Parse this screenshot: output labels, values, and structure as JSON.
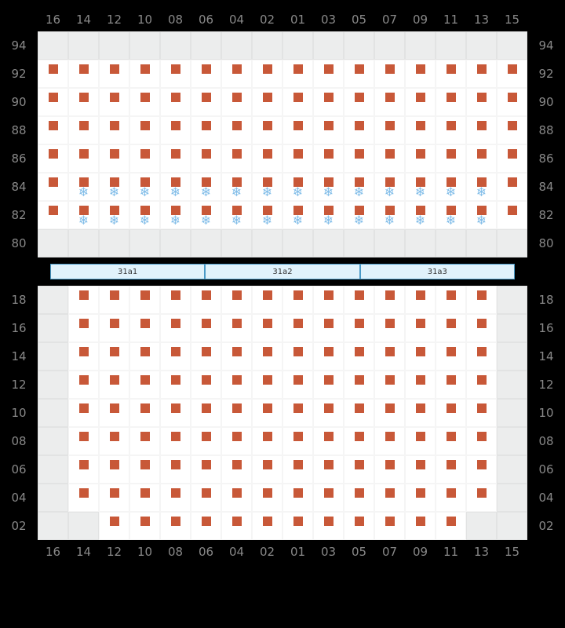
{
  "cols": [
    "16",
    "14",
    "12",
    "10",
    "08",
    "06",
    "04",
    "02",
    "01",
    "03",
    "05",
    "07",
    "09",
    "11",
    "13",
    "15"
  ],
  "upper": {
    "rows": [
      "94",
      "92",
      "90",
      "88",
      "86",
      "84",
      "82",
      "80"
    ],
    "cells": {
      "94": {
        "grey_cols": [
          "16",
          "14",
          "12",
          "10",
          "08",
          "06",
          "04",
          "02",
          "01",
          "03",
          "05",
          "07",
          "09",
          "11",
          "13",
          "15"
        ],
        "seat_cols": [],
        "snow_cols": []
      },
      "92": {
        "grey_cols": [],
        "seat_cols": [
          "16",
          "14",
          "12",
          "10",
          "08",
          "06",
          "04",
          "02",
          "01",
          "03",
          "05",
          "07",
          "09",
          "11",
          "13",
          "15"
        ],
        "snow_cols": []
      },
      "90": {
        "grey_cols": [],
        "seat_cols": [
          "16",
          "14",
          "12",
          "10",
          "08",
          "06",
          "04",
          "02",
          "01",
          "03",
          "05",
          "07",
          "09",
          "11",
          "13",
          "15"
        ],
        "snow_cols": []
      },
      "88": {
        "grey_cols": [],
        "seat_cols": [
          "16",
          "14",
          "12",
          "10",
          "08",
          "06",
          "04",
          "02",
          "01",
          "03",
          "05",
          "07",
          "09",
          "11",
          "13",
          "15"
        ],
        "snow_cols": []
      },
      "86": {
        "grey_cols": [],
        "seat_cols": [
          "16",
          "14",
          "12",
          "10",
          "08",
          "06",
          "04",
          "02",
          "01",
          "03",
          "05",
          "07",
          "09",
          "11",
          "13",
          "15"
        ],
        "snow_cols": []
      },
      "84": {
        "grey_cols": [],
        "seat_cols": [
          "16",
          "14",
          "12",
          "10",
          "08",
          "06",
          "04",
          "02",
          "01",
          "03",
          "05",
          "07",
          "09",
          "11",
          "13",
          "15"
        ],
        "snow_cols": [
          "14",
          "12",
          "10",
          "08",
          "06",
          "04",
          "02",
          "01",
          "03",
          "05",
          "07",
          "09",
          "11",
          "13"
        ]
      },
      "82": {
        "grey_cols": [],
        "seat_cols": [
          "16",
          "14",
          "12",
          "10",
          "08",
          "06",
          "04",
          "02",
          "01",
          "03",
          "05",
          "07",
          "09",
          "11",
          "13",
          "15"
        ],
        "snow_cols": [
          "14",
          "12",
          "10",
          "08",
          "06",
          "04",
          "02",
          "01",
          "03",
          "05",
          "07",
          "09",
          "11",
          "13"
        ]
      },
      "80": {
        "grey_cols": [
          "16",
          "14",
          "12",
          "10",
          "08",
          "06",
          "04",
          "02",
          "01",
          "03",
          "05",
          "07",
          "09",
          "11",
          "13",
          "15"
        ],
        "seat_cols": [],
        "snow_cols": []
      }
    }
  },
  "divider": [
    "31a1",
    "31a2",
    "31a3"
  ],
  "lower": {
    "rows": [
      "18",
      "16",
      "14",
      "12",
      "10",
      "08",
      "06",
      "04",
      "02"
    ],
    "cells": {
      "18": {
        "grey_cols": [
          "16",
          "15"
        ],
        "seat_cols": [
          "14",
          "12",
          "10",
          "08",
          "06",
          "04",
          "02",
          "01",
          "03",
          "05",
          "07",
          "09",
          "11",
          "13"
        ],
        "snow_cols": []
      },
      "16": {
        "grey_cols": [
          "16",
          "15"
        ],
        "seat_cols": [
          "14",
          "12",
          "10",
          "08",
          "06",
          "04",
          "02",
          "01",
          "03",
          "05",
          "07",
          "09",
          "11",
          "13"
        ],
        "snow_cols": []
      },
      "14": {
        "grey_cols": [
          "16",
          "15"
        ],
        "seat_cols": [
          "14",
          "12",
          "10",
          "08",
          "06",
          "04",
          "02",
          "01",
          "03",
          "05",
          "07",
          "09",
          "11",
          "13"
        ],
        "snow_cols": []
      },
      "12": {
        "grey_cols": [
          "16",
          "15"
        ],
        "seat_cols": [
          "14",
          "12",
          "10",
          "08",
          "06",
          "04",
          "02",
          "01",
          "03",
          "05",
          "07",
          "09",
          "11",
          "13"
        ],
        "snow_cols": []
      },
      "10": {
        "grey_cols": [
          "16",
          "15"
        ],
        "seat_cols": [
          "14",
          "12",
          "10",
          "08",
          "06",
          "04",
          "02",
          "01",
          "03",
          "05",
          "07",
          "09",
          "11",
          "13"
        ],
        "snow_cols": []
      },
      "08": {
        "grey_cols": [
          "16",
          "15"
        ],
        "seat_cols": [
          "14",
          "12",
          "10",
          "08",
          "06",
          "04",
          "02",
          "01",
          "03",
          "05",
          "07",
          "09",
          "11",
          "13"
        ],
        "snow_cols": []
      },
      "06": {
        "grey_cols": [
          "16",
          "15"
        ],
        "seat_cols": [
          "14",
          "12",
          "10",
          "08",
          "06",
          "04",
          "02",
          "01",
          "03",
          "05",
          "07",
          "09",
          "11",
          "13"
        ],
        "snow_cols": []
      },
      "04": {
        "grey_cols": [
          "16",
          "15"
        ],
        "seat_cols": [
          "14",
          "12",
          "10",
          "08",
          "06",
          "04",
          "02",
          "01",
          "03",
          "05",
          "07",
          "09",
          "11",
          "13"
        ],
        "snow_cols": []
      },
      "02": {
        "grey_cols": [
          "16",
          "14",
          "13",
          "15"
        ],
        "seat_cols": [
          "12",
          "10",
          "08",
          "06",
          "04",
          "02",
          "01",
          "03",
          "05",
          "07",
          "09",
          "11"
        ],
        "snow_cols": []
      }
    }
  },
  "colors": {
    "seat": "#c85838",
    "snow": "#7fbce8",
    "grey_cell": "#eceded",
    "white_cell": "#ffffff",
    "label": "#888888",
    "divider_bg": "#e1f2fb",
    "divider_border": "#4a9ac7",
    "background": "#000000"
  }
}
